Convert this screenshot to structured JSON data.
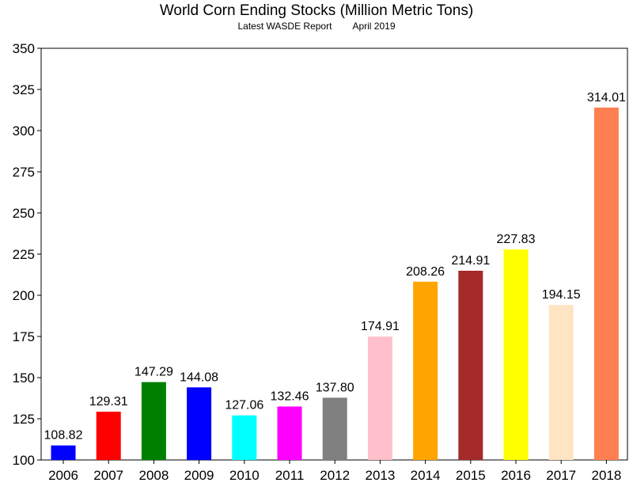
{
  "chart_data": {
    "type": "bar",
    "title": "World Corn Ending Stocks (Million Metric Tons)",
    "subtitle_left": "Latest WASDE Report",
    "subtitle_right": "April 2019",
    "categories": [
      "2006",
      "2007",
      "2008",
      "2009",
      "2010",
      "2011",
      "2012",
      "2013",
      "2014",
      "2015",
      "2016",
      "2017",
      "2018"
    ],
    "values": [
      108.82,
      129.31,
      147.29,
      144.08,
      127.06,
      132.46,
      137.8,
      174.91,
      208.26,
      214.91,
      227.83,
      194.15,
      314.01
    ],
    "value_labels": [
      "108.82",
      "129.31",
      "147.29",
      "144.08",
      "127.06",
      "132.46",
      "137.80",
      "174.91",
      "208.26",
      "214.91",
      "227.83",
      "194.15",
      "314.01"
    ],
    "colors": [
      "#0000ff",
      "#ff0000",
      "#008000",
      "#0000ff",
      "#00ffff",
      "#ff00ff",
      "#808080",
      "#ffc0cb",
      "#ffa500",
      "#a52a2a",
      "#ffff00",
      "#ffe4c4",
      "#ff7f50"
    ],
    "ylim": [
      100,
      350
    ],
    "yticks": [
      100,
      125,
      150,
      175,
      200,
      225,
      250,
      275,
      300,
      325,
      350
    ],
    "xlabel": "",
    "ylabel": "",
    "grid": false,
    "legend": "none"
  }
}
